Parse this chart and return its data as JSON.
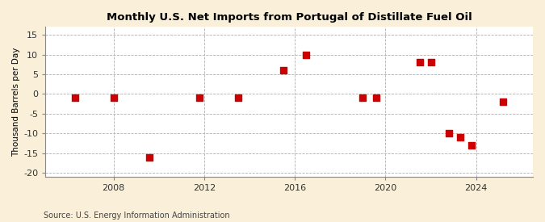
{
  "title": "Monthly U.S. Net Imports from Portugal of Distillate Fuel Oil",
  "ylabel": "Thousand Barrels per Day",
  "source": "Source: U.S. Energy Information Administration",
  "background_color": "#faefd8",
  "plot_bg_color": "#ffffff",
  "marker_color": "#cc0000",
  "marker_size": 36,
  "xlim": [
    2005.0,
    2026.5
  ],
  "ylim": [
    -21,
    17
  ],
  "yticks": [
    -20,
    -15,
    -10,
    -5,
    0,
    5,
    10,
    15
  ],
  "xticks": [
    2008,
    2012,
    2016,
    2020,
    2024
  ],
  "data_x": [
    2006.3,
    2008.0,
    2009.6,
    2011.8,
    2013.5,
    2015.5,
    2016.5,
    2019.0,
    2019.6,
    2021.5,
    2022.0,
    2022.8,
    2023.3,
    2023.8,
    2025.2
  ],
  "data_y": [
    -1,
    -1,
    -16,
    -1,
    -1,
    6,
    10,
    -1,
    -1,
    8,
    8,
    -10,
    -11,
    -13,
    -2
  ]
}
